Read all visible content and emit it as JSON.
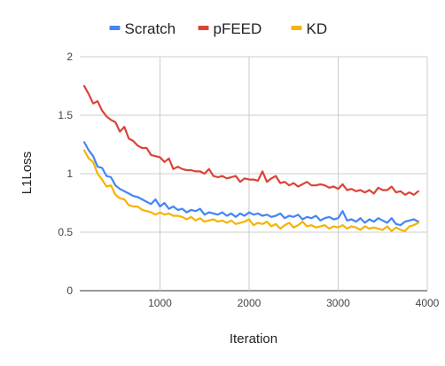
{
  "chart_data": {
    "type": "line",
    "xlabel": "Iteration",
    "ylabel": "L1Loss",
    "xlim": [
      100,
      4000
    ],
    "ylim": [
      0,
      2
    ],
    "x_ticks": [
      1000,
      2000,
      3000,
      4000
    ],
    "y_ticks": [
      0,
      0.5,
      1,
      1.5,
      2
    ],
    "x_tick_labels": [
      "1000",
      "2000",
      "3000",
      "4000"
    ],
    "y_tick_labels": [
      "0",
      "0.5",
      "1",
      "1.5",
      "2"
    ],
    "grid": true,
    "legend_position": "top-center",
    "x": [
      150,
      200,
      250,
      300,
      350,
      400,
      450,
      500,
      550,
      600,
      650,
      700,
      750,
      800,
      850,
      900,
      950,
      1000,
      1050,
      1100,
      1150,
      1200,
      1250,
      1300,
      1350,
      1400,
      1450,
      1500,
      1550,
      1600,
      1650,
      1700,
      1750,
      1800,
      1850,
      1900,
      1950,
      2000,
      2050,
      2100,
      2150,
      2200,
      2250,
      2300,
      2350,
      2400,
      2450,
      2500,
      2550,
      2600,
      2650,
      2700,
      2750,
      2800,
      2850,
      2900,
      2950,
      3000,
      3050,
      3100,
      3150,
      3200,
      3250,
      3300,
      3350,
      3400,
      3450,
      3500,
      3550,
      3600,
      3650,
      3700,
      3750,
      3800,
      3850,
      3900
    ],
    "series": [
      {
        "name": "Scratch",
        "color": "#4285F4",
        "values": [
          1.27,
          1.2,
          1.15,
          1.06,
          1.05,
          0.98,
          0.97,
          0.9,
          0.87,
          0.85,
          0.83,
          0.81,
          0.8,
          0.78,
          0.76,
          0.74,
          0.78,
          0.72,
          0.75,
          0.7,
          0.72,
          0.69,
          0.7,
          0.67,
          0.69,
          0.68,
          0.7,
          0.65,
          0.67,
          0.66,
          0.65,
          0.67,
          0.64,
          0.66,
          0.63,
          0.66,
          0.64,
          0.67,
          0.65,
          0.66,
          0.64,
          0.65,
          0.63,
          0.64,
          0.66,
          0.62,
          0.64,
          0.63,
          0.65,
          0.61,
          0.63,
          0.62,
          0.64,
          0.6,
          0.62,
          0.63,
          0.61,
          0.62,
          0.68,
          0.6,
          0.61,
          0.59,
          0.62,
          0.58,
          0.61,
          0.59,
          0.62,
          0.6,
          0.58,
          0.62,
          0.57,
          0.56,
          0.59,
          0.6,
          0.61,
          0.59
        ]
      },
      {
        "name": "pFEED",
        "color": "#DB4437",
        "values": [
          1.75,
          1.68,
          1.6,
          1.62,
          1.54,
          1.49,
          1.46,
          1.44,
          1.36,
          1.4,
          1.3,
          1.28,
          1.24,
          1.22,
          1.22,
          1.16,
          1.15,
          1.14,
          1.1,
          1.13,
          1.04,
          1.06,
          1.04,
          1.03,
          1.03,
          1.02,
          1.02,
          1.0,
          1.04,
          0.98,
          0.97,
          0.98,
          0.96,
          0.97,
          0.98,
          0.93,
          0.96,
          0.95,
          0.95,
          0.94,
          1.02,
          0.93,
          0.96,
          0.98,
          0.92,
          0.93,
          0.9,
          0.92,
          0.89,
          0.91,
          0.93,
          0.9,
          0.9,
          0.91,
          0.9,
          0.88,
          0.89,
          0.87,
          0.91,
          0.86,
          0.87,
          0.85,
          0.86,
          0.84,
          0.86,
          0.83,
          0.88,
          0.86,
          0.86,
          0.89,
          0.84,
          0.85,
          0.82,
          0.84,
          0.82,
          0.85
        ]
      },
      {
        "name": "KD",
        "color": "#F4B400",
        "values": [
          1.2,
          1.13,
          1.1,
          1.0,
          0.95,
          0.89,
          0.9,
          0.82,
          0.79,
          0.78,
          0.73,
          0.72,
          0.72,
          0.69,
          0.68,
          0.67,
          0.65,
          0.67,
          0.65,
          0.66,
          0.64,
          0.64,
          0.63,
          0.61,
          0.63,
          0.6,
          0.62,
          0.59,
          0.6,
          0.61,
          0.59,
          0.6,
          0.58,
          0.6,
          0.57,
          0.58,
          0.59,
          0.61,
          0.56,
          0.58,
          0.57,
          0.59,
          0.55,
          0.57,
          0.53,
          0.56,
          0.58,
          0.54,
          0.56,
          0.59,
          0.55,
          0.56,
          0.54,
          0.55,
          0.56,
          0.53,
          0.55,
          0.54,
          0.56,
          0.53,
          0.55,
          0.54,
          0.52,
          0.55,
          0.53,
          0.54,
          0.53,
          0.52,
          0.55,
          0.51,
          0.54,
          0.52,
          0.51,
          0.55,
          0.56,
          0.58
        ]
      }
    ]
  }
}
